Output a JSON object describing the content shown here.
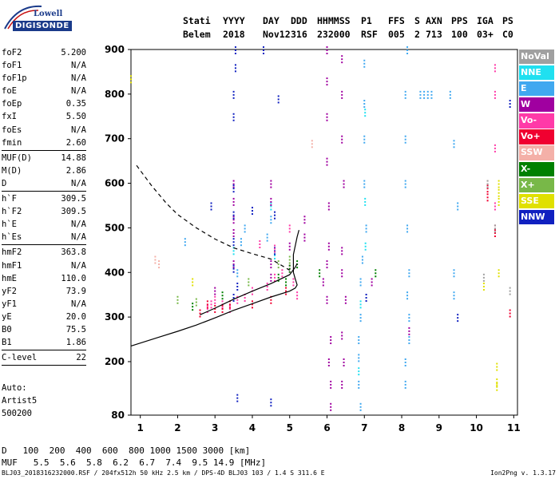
{
  "logo": {
    "line1": "Lowell",
    "line2": "DIGISONDE"
  },
  "header": {
    "labels": [
      "Stati",
      "YYYY",
      "DAY",
      "DDD",
      "HHMMSS",
      "P1",
      "FFS",
      "S",
      "AXN",
      "PPS",
      "IGA",
      "PS"
    ],
    "values": [
      "Belem",
      "2018",
      "Nov12",
      "316",
      "232000",
      "RSF",
      "005",
      "2",
      "713",
      "100",
      "03+",
      "C0"
    ]
  },
  "params": [
    {
      "label": "foF2",
      "value": "5.200"
    },
    {
      "label": "foF1",
      "value": "N/A"
    },
    {
      "label": "foF1p",
      "value": "N/A"
    },
    {
      "label": "foE",
      "value": "N/A"
    },
    {
      "label": "foEp",
      "value": "0.35"
    },
    {
      "label": "fxI",
      "value": "5.50"
    },
    {
      "label": "foEs",
      "value": "N/A"
    },
    {
      "label": "fmin",
      "value": "2.60"
    },
    {
      "sep": true
    },
    {
      "label": "MUF(D)",
      "value": "14.88"
    },
    {
      "label": "M(D)",
      "value": "2.86"
    },
    {
      "label": "D",
      "value": "N/A"
    },
    {
      "sep": true
    },
    {
      "label": "h`F",
      "value": "309.5"
    },
    {
      "label": "h`F2",
      "value": "309.5"
    },
    {
      "label": "h`E",
      "value": "N/A"
    },
    {
      "label": "h`Es",
      "value": "N/A"
    },
    {
      "sep": true
    },
    {
      "label": "hmF2",
      "value": "363.8"
    },
    {
      "label": "hmF1",
      "value": "N/A"
    },
    {
      "label": "hmE",
      "value": "110.0"
    },
    {
      "label": "yF2",
      "value": "73.9"
    },
    {
      "label": "yF1",
      "value": "N/A"
    },
    {
      "label": "yE",
      "value": "20.0"
    },
    {
      "label": "B0",
      "value": "75.5"
    },
    {
      "label": "B1",
      "value": "1.86"
    },
    {
      "sep": true
    },
    {
      "label": "C-level",
      "value": "22"
    },
    {
      "sep": true
    }
  ],
  "auto": {
    "line1": "Auto:",
    "line2": "Artist5",
    "line3": "500200"
  },
  "legend": [
    {
      "label": "NoVal",
      "color": "#a0a0a0"
    },
    {
      "label": "NNE",
      "color": "#20e0f0"
    },
    {
      "label": "E",
      "color": "#40a8f0"
    },
    {
      "label": "W",
      "color": "#a000a0"
    },
    {
      "label": "Vo-",
      "color": "#ff3aa8"
    },
    {
      "label": "Vo+",
      "color": "#f00030"
    },
    {
      "label": "SSW",
      "color": "#f4b0a8"
    },
    {
      "label": "X-",
      "color": "#008000"
    },
    {
      "label": "X+",
      "color": "#78b848"
    },
    {
      "label": "SSE",
      "color": "#e0e000"
    },
    {
      "label": "NNW",
      "color": "#1020c0"
    }
  ],
  "muf_table": {
    "d_label": "D",
    "d_values": "100  200  400  600  800 1000 1500 3000 [km]",
    "muf_label": "MUF",
    "muf_values": "5.5  5.6  5.8  6.2  6.7  7.4  9.5 14.9 [MHz]"
  },
  "footer": "BLJ03_2018316232000.RSF / 204fx512h 50 kHz 2.5 km / DPS-4D BLJ03 103 / 1.4 S 311.6 E",
  "version": "Ion2Png v. 1.3.17",
  "chart_data": {
    "type": "scatter",
    "x_ticks": [
      "1",
      "2",
      "3",
      "4",
      "5",
      "6",
      "7",
      "8",
      "9",
      "10",
      "11"
    ],
    "y_ticks": [
      "80",
      "200",
      "300",
      "400",
      "500",
      "600",
      "700",
      "800",
      "900"
    ],
    "xlim": [
      0.75,
      11.1
    ],
    "ylim": [
      80,
      900
    ],
    "x_unit": "MHz",
    "y_unit": "km",
    "grid": false,
    "traces": [
      {
        "name": "E",
        "points": [
          [
            7.0,
            870
          ],
          [
            7.0,
            780
          ],
          [
            7.0,
            700
          ],
          [
            7.0,
            600
          ],
          [
            7.05,
            500
          ],
          [
            6.95,
            430
          ],
          [
            6.9,
            380
          ],
          [
            6.9,
            300
          ],
          [
            6.85,
            250
          ],
          [
            6.85,
            210
          ],
          [
            6.85,
            150
          ],
          [
            6.9,
            100
          ],
          [
            8.15,
            900
          ],
          [
            8.1,
            800
          ],
          [
            8.1,
            700
          ],
          [
            8.1,
            600
          ],
          [
            8.15,
            500
          ],
          [
            8.2,
            400
          ],
          [
            8.15,
            350
          ],
          [
            8.2,
            300
          ],
          [
            8.2,
            250
          ],
          [
            8.1,
            200
          ],
          [
            8.1,
            150
          ],
          [
            9.3,
            800
          ],
          [
            9.4,
            690
          ],
          [
            9.5,
            550
          ],
          [
            9.4,
            400
          ],
          [
            9.4,
            350
          ],
          [
            8.5,
            800
          ],
          [
            8.6,
            800
          ],
          [
            8.7,
            800
          ],
          [
            8.8,
            800
          ],
          [
            4.5,
            520
          ],
          [
            4.4,
            480
          ],
          [
            3.7,
            470
          ],
          [
            3.6,
            400
          ],
          [
            3.8,
            500
          ],
          [
            2.2,
            470
          ]
        ]
      },
      {
        "name": "NNE",
        "points": [
          [
            7.02,
            760
          ],
          [
            7.02,
            560
          ],
          [
            7.03,
            460
          ],
          [
            6.9,
            330
          ],
          [
            6.85,
            180
          ],
          [
            4.5,
            550
          ],
          [
            4.6,
            440
          ],
          [
            3.5,
            450
          ]
        ]
      },
      {
        "name": "W",
        "points": [
          [
            6.0,
            900
          ],
          [
            6.0,
            830
          ],
          [
            6.0,
            750
          ],
          [
            6.0,
            650
          ],
          [
            6.05,
            550
          ],
          [
            6.05,
            460
          ],
          [
            6.0,
            420
          ],
          [
            5.9,
            380
          ],
          [
            6.0,
            340
          ],
          [
            6.1,
            250
          ],
          [
            6.05,
            200
          ],
          [
            6.1,
            150
          ],
          [
            6.1,
            100
          ],
          [
            6.4,
            880
          ],
          [
            6.4,
            800
          ],
          [
            6.4,
            700
          ],
          [
            6.45,
            600
          ],
          [
            6.4,
            450
          ],
          [
            6.4,
            400
          ],
          [
            6.5,
            340
          ],
          [
            6.4,
            260
          ],
          [
            6.45,
            200
          ],
          [
            6.4,
            150
          ],
          [
            3.5,
            600
          ],
          [
            3.5,
            560
          ],
          [
            3.5,
            520
          ],
          [
            3.5,
            490
          ],
          [
            3.5,
            420
          ],
          [
            4.5,
            600
          ],
          [
            4.5,
            560
          ],
          [
            4.5,
            420
          ],
          [
            4.5,
            390
          ],
          [
            3.0,
            360
          ],
          [
            5.0,
            460
          ],
          [
            5.4,
            480
          ],
          [
            5.4,
            520
          ],
          [
            7.2,
            380
          ],
          [
            8.2,
            270
          ]
        ]
      },
      {
        "name": "NNW",
        "points": [
          [
            3.55,
            900
          ],
          [
            3.55,
            860
          ],
          [
            3.5,
            800
          ],
          [
            3.5,
            750
          ],
          [
            4.3,
            900
          ],
          [
            4.7,
            790
          ],
          [
            3.5,
            590
          ],
          [
            3.5,
            530
          ],
          [
            3.5,
            470
          ],
          [
            3.5,
            410
          ],
          [
            3.6,
            370
          ],
          [
            3.5,
            345
          ],
          [
            4.6,
            530
          ],
          [
            4.6,
            450
          ],
          [
            2.9,
            550
          ],
          [
            4.0,
            540
          ],
          [
            3.6,
            120
          ],
          [
            4.5,
            110
          ],
          [
            10.9,
            780
          ],
          [
            7.05,
            345
          ],
          [
            9.5,
            300
          ]
        ]
      },
      {
        "name": "Vo-",
        "points": [
          [
            2.8,
            320
          ],
          [
            2.9,
            330
          ],
          [
            3.0,
            340
          ],
          [
            3.2,
            330
          ],
          [
            3.4,
            320
          ],
          [
            3.6,
            340
          ],
          [
            3.8,
            345
          ],
          [
            4.0,
            360
          ],
          [
            4.4,
            370
          ],
          [
            4.6,
            390
          ],
          [
            4.8,
            400
          ],
          [
            5.0,
            410
          ],
          [
            5.1,
            380
          ],
          [
            5.2,
            350
          ],
          [
            4.2,
            465
          ],
          [
            4.6,
            455
          ],
          [
            5.0,
            500
          ],
          [
            10.5,
            860
          ],
          [
            10.5,
            800
          ],
          [
            10.5,
            680
          ],
          [
            10.5,
            550
          ]
        ]
      },
      {
        "name": "Vo+",
        "points": [
          [
            2.6,
            310
          ],
          [
            2.8,
            330
          ],
          [
            3.0,
            320
          ],
          [
            3.2,
            320
          ],
          [
            3.4,
            330
          ],
          [
            4.0,
            330
          ],
          [
            4.5,
            340
          ],
          [
            4.9,
            360
          ],
          [
            10.3,
            590
          ],
          [
            10.3,
            570
          ],
          [
            10.5,
            500
          ],
          [
            10.5,
            490
          ],
          [
            10.9,
            310
          ]
        ]
      },
      {
        "name": "X-",
        "points": [
          [
            5.0,
            410
          ],
          [
            5.2,
            420
          ],
          [
            4.7,
            390
          ],
          [
            4.9,
            380
          ],
          [
            5.8,
            400
          ],
          [
            7.3,
            400
          ],
          [
            3.2,
            350
          ],
          [
            2.4,
            325
          ]
        ]
      },
      {
        "name": "X+",
        "points": [
          [
            5.0,
            430
          ],
          [
            4.7,
            420
          ],
          [
            2.5,
            335
          ],
          [
            2.0,
            340
          ],
          [
            3.9,
            380
          ]
        ]
      },
      {
        "name": "SSE",
        "points": [
          [
            10.6,
            600
          ],
          [
            10.6,
            580
          ],
          [
            10.6,
            560
          ],
          [
            10.6,
            400
          ],
          [
            10.55,
            190
          ],
          [
            10.55,
            155
          ],
          [
            10.55,
            145
          ],
          [
            2.4,
            380
          ],
          [
            10.2,
            370
          ],
          [
            0.75,
            835
          ]
        ]
      },
      {
        "name": "SSW",
        "points": [
          [
            1.4,
            430
          ],
          [
            1.5,
            420
          ],
          [
            5.6,
            690
          ],
          [
            10.3,
            600
          ]
        ]
      },
      {
        "name": "NoVal",
        "points": [
          [
            10.5,
            500
          ],
          [
            10.2,
            390
          ],
          [
            10.3,
            600
          ],
          [
            10.9,
            360
          ]
        ]
      }
    ],
    "profile_curve": [
      [
        0.75,
        235
      ],
      [
        1.5,
        255
      ],
      [
        2.0,
        268
      ],
      [
        2.5,
        282
      ],
      [
        3.0,
        298
      ],
      [
        3.5,
        315
      ],
      [
        4.0,
        330
      ],
      [
        4.5,
        345
      ],
      [
        5.0,
        358
      ],
      [
        5.15,
        365
      ],
      [
        5.2,
        372
      ],
      [
        5.15,
        385
      ],
      [
        5.1,
        400
      ],
      [
        5.1,
        440
      ],
      [
        5.2,
        480
      ],
      [
        5.25,
        495
      ]
    ],
    "profile_curve_low": [
      [
        2.6,
        305
      ],
      [
        3.0,
        320
      ],
      [
        3.5,
        340
      ],
      [
        4.0,
        358
      ],
      [
        4.5,
        375
      ],
      [
        5.0,
        395
      ],
      [
        5.15,
        412
      ],
      [
        5.2,
        420
      ]
    ],
    "dashed_curve": [
      [
        0.9,
        640
      ],
      [
        1.3,
        595
      ],
      [
        1.7,
        555
      ],
      [
        2.0,
        530
      ],
      [
        2.5,
        500
      ],
      [
        3.0,
        475
      ],
      [
        3.5,
        455
      ],
      [
        4.0,
        442
      ],
      [
        4.5,
        430
      ],
      [
        5.0,
        405
      ]
    ]
  }
}
